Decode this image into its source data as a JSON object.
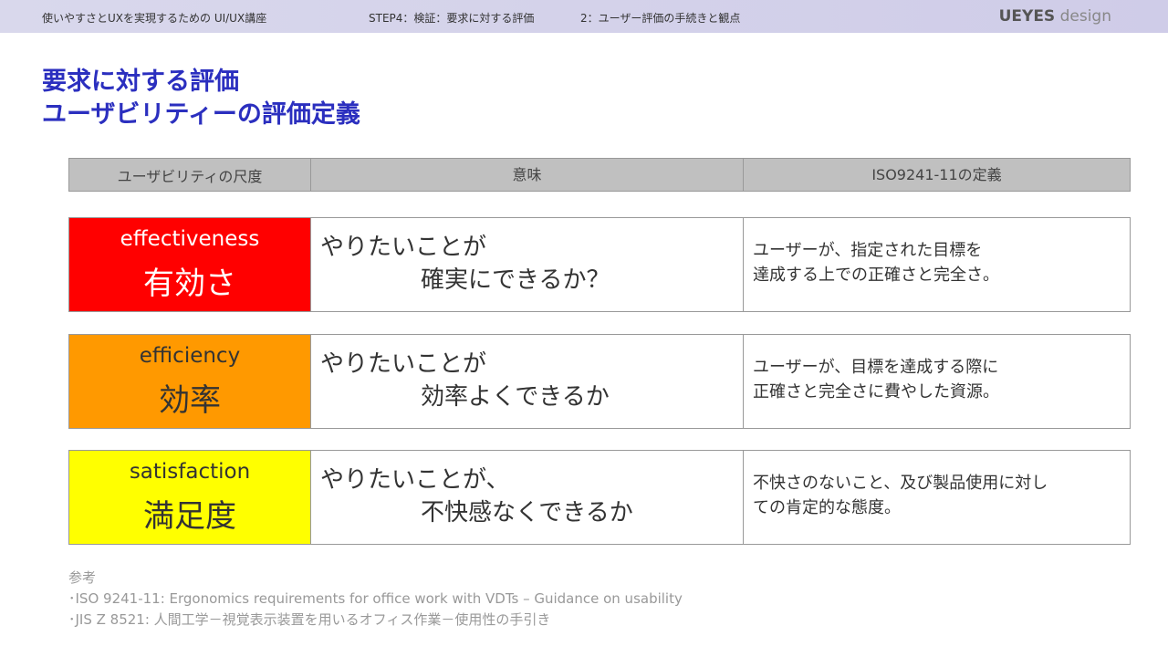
{
  "header": {
    "course": "使いやすさとUXを実現するための UI/UX講座",
    "step": "STEP4：検証：要求に対する評価",
    "section": "2：ユーザー評価の手続きと観点",
    "logo_bold": "UEYES",
    "logo_light": "design"
  },
  "title": {
    "line1": "要求に対する評価",
    "line2": "ユーザビリティーの評価定義"
  },
  "table": {
    "columns": [
      "ユーザビリティの尺度",
      "意味",
      "ISO9241-11の定義"
    ],
    "rows": [
      {
        "en": "effectiveness",
        "jp": "有効さ",
        "color": "#ff0000",
        "label_color": "#ffffff",
        "meaning1": "やりたいことが",
        "meaning2": "確実にできるか？",
        "definition1": "ユーザーが、指定された目標を",
        "definition2": "達成する上での正確さと完全さ。"
      },
      {
        "en": "efficiency",
        "jp": "効率",
        "color": "#ff9900",
        "label_color": "#333333",
        "meaning1": "やりたいことが",
        "meaning2": "効率よくできるか",
        "definition1": "ユーザーが、目標を達成する際に",
        "definition2": "正確さと完全さに費やした資源。"
      },
      {
        "en": "satisfaction",
        "jp": "満足度",
        "color": "#ffff00",
        "label_color": "#333333",
        "meaning1": "やりたいことが、",
        "meaning2": "不快感なくできるか",
        "definition1": "不快さのないこと、及び製品使用に対し",
        "definition2": "ての肯定的な態度。"
      }
    ]
  },
  "references": {
    "heading": "参考",
    "items": [
      "･ISO 9241-11: Ergonomics requirements for office work with VDTs – Guidance on usability",
      "･JIS Z 8521: 人間工学－視覚表示装置を用いるオフィス作業－使用性の手引き"
    ]
  }
}
